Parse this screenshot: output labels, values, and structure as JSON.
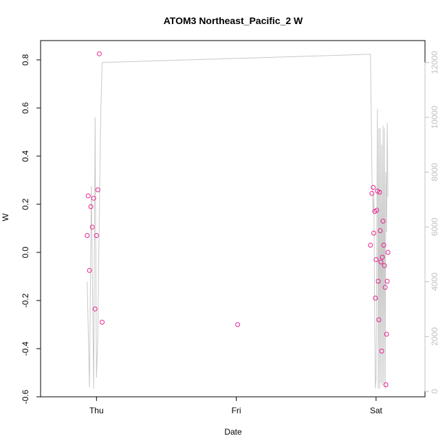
{
  "chart_data": {
    "type": "scatter",
    "title": "ATOM3 Northeast_Pacific_2 W",
    "xlabel": "Date",
    "ylabel": "W",
    "x_ticks": [
      "Thu",
      "Fri",
      "Sat"
    ],
    "xlim": [
      "Wed 21:36",
      "Sat 02:24"
    ],
    "ylim": [
      -0.6,
      0.88
    ],
    "y_ticks": [
      -0.6,
      -0.4,
      -0.2,
      0.0,
      0.2,
      0.4,
      0.6,
      0.8
    ],
    "y_right_ticks": [
      0,
      2000,
      4000,
      6000,
      8000,
      10000,
      12000
    ],
    "y_right_lim": [
      -200,
      12800
    ],
    "colors": {
      "points": "#e8228f",
      "line": "#c8c8c8",
      "right_axis": "#c0c0c0"
    },
    "series": [
      {
        "marker": "circle-open",
        "x": [
          "Wed 22:24",
          "Wed 22:34",
          "Wed 22:48",
          "Wed 23:02",
          "Wed 23:17",
          "Wed 23:31",
          "Wed 23:46",
          "Thu 00:00",
          "Thu 00:14",
          "Thu 00:29",
          "Thu 00:58",
          "Fri 00:14",
          "Fri 23:02",
          "Fri 23:17",
          "Fri 23:31",
          "Fri 23:36",
          "Fri 23:46",
          "Fri 23:53",
          "Sat 00:00",
          "Sat 00:07",
          "Sat 00:14",
          "Sat 00:22",
          "Sat 00:29",
          "Sat 00:36",
          "Sat 00:43",
          "Sat 00:50",
          "Sat 00:58",
          "Sat 01:05",
          "Sat 01:12",
          "Sat 01:19",
          "Sat 01:26",
          "Sat 01:34",
          "Sat 01:41",
          "Sat 01:48",
          "Sat 01:55",
          "Sat 02:02"
        ],
        "y": [
          0.07,
          0.235,
          -0.075,
          0.19,
          0.105,
          0.225,
          -0.235,
          0.07,
          0.26,
          0.825,
          -0.29,
          -0.3,
          0.03,
          0.245,
          0.27,
          0.08,
          0.17,
          -0.19,
          -0.03,
          0.175,
          0.255,
          -0.12,
          -0.28,
          0.25,
          0.09,
          -0.04,
          -0.41,
          -0.02,
          0.13,
          0.03,
          -0.055,
          -0.145,
          -0.55,
          -0.34,
          -0.12,
          0.0
        ]
      },
      {
        "name": "",
        "axis": "right",
        "x": [
          "Wed 22:24",
          "Wed 22:48",
          "Wed 23:07",
          "Wed 23:31",
          "Wed 23:46",
          "Wed 23:55",
          "Thu 00:00",
          "Thu 00:14",
          "Thu 00:29",
          "Thu 00:43",
          "Thu 00:58",
          "Fri 23:02",
          "Fri 23:17",
          "Fri 23:24",
          "Fri 23:31",
          "Fri 23:38",
          "Fri 23:46",
          "Fri 23:53",
          "Sat 00:00",
          "Sat 00:14",
          "Sat 00:22",
          "Sat 00:29",
          "Sat 00:36",
          "Sat 00:43",
          "Sat 00:50",
          "Sat 00:58",
          "Sat 01:05",
          "Sat 01:12",
          "Sat 01:19",
          "Sat 01:26",
          "Sat 01:34",
          "Sat 01:41",
          "Sat 01:48",
          "Sat 01:55",
          "Sat 02:02"
        ],
        "y": [
          4000,
          150,
          7500,
          100,
          10000,
          3500,
          500,
          2000,
          6500,
          10000,
          12000,
          12300,
          8000,
          7000,
          6500,
          7200,
          2100,
          100,
          500,
          10300,
          100,
          9600,
          100,
          9600,
          300,
          9000,
          200,
          9700,
          300,
          9600,
          100,
          8000,
          5800,
          9800,
          7100
        ]
      }
    ]
  }
}
